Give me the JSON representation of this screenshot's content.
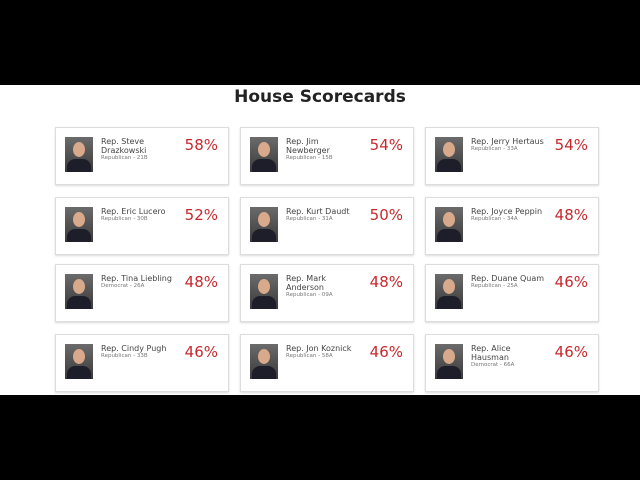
{
  "header": {
    "title": "House Scorecards"
  },
  "cards": [
    {
      "name": "Rep. Steve Drazkowski",
      "detail": "Republican - 21B",
      "score": "58%"
    },
    {
      "name": "Rep. Jim Newberger",
      "detail": "Republican - 15B",
      "score": "54%"
    },
    {
      "name": "Rep. Jerry Hertaus",
      "detail": "Republican - 33A",
      "score": "54%"
    },
    {
      "name": "Rep. Eric Lucero",
      "detail": "Republican - 30B",
      "score": "52%"
    },
    {
      "name": "Rep. Kurt Daudt",
      "detail": "Republican - 31A",
      "score": "50%"
    },
    {
      "name": "Rep. Joyce Peppin",
      "detail": "Republican - 34A",
      "score": "48%"
    },
    {
      "name": "Rep. Tina Liebling",
      "detail": "Democrat - 26A",
      "score": "48%"
    },
    {
      "name": "Rep. Mark Anderson",
      "detail": "Republican - 09A",
      "score": "48%"
    },
    {
      "name": "Rep. Duane Quam",
      "detail": "Republican - 25A",
      "score": "46%"
    },
    {
      "name": "Rep. Cindy Pugh",
      "detail": "Republican - 33B",
      "score": "46%"
    },
    {
      "name": "Rep. Jon Koznick",
      "detail": "Republican - 58A",
      "score": "46%"
    },
    {
      "name": "Rep. Alice Hausman",
      "detail": "Democrat - 66A",
      "score": "46%"
    }
  ]
}
